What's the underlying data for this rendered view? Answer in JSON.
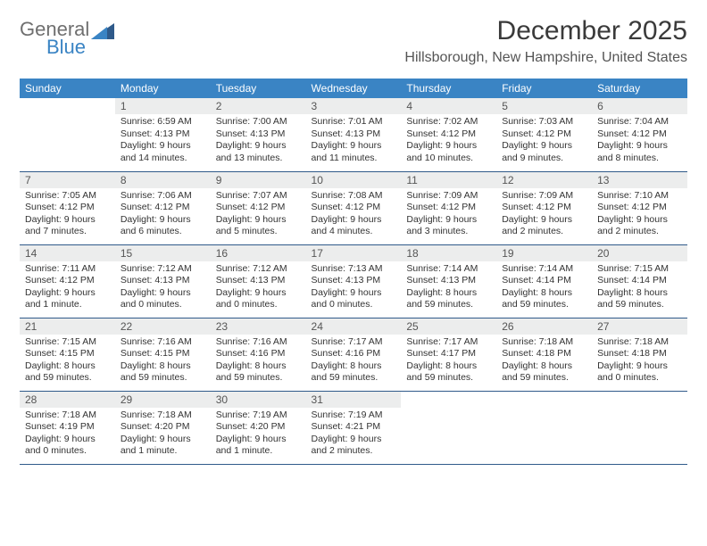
{
  "brand": {
    "general": "General",
    "blue": "Blue"
  },
  "title": "December 2025",
  "location": "Hillsborough, New Hampshire, United States",
  "colors": {
    "header_bg": "#3a84c4",
    "header_fg": "#ffffff",
    "daynum_bg": "#eceded",
    "rule": "#2f5a8a",
    "logo_gray": "#6f6f6f",
    "logo_blue": "#3a84c4"
  },
  "columns": [
    "Sunday",
    "Monday",
    "Tuesday",
    "Wednesday",
    "Thursday",
    "Friday",
    "Saturday"
  ],
  "weeks": [
    [
      {
        "n": "",
        "sr": "",
        "ss": "",
        "dl": ""
      },
      {
        "n": "1",
        "sr": "Sunrise: 6:59 AM",
        "ss": "Sunset: 4:13 PM",
        "dl": "Daylight: 9 hours and 14 minutes."
      },
      {
        "n": "2",
        "sr": "Sunrise: 7:00 AM",
        "ss": "Sunset: 4:13 PM",
        "dl": "Daylight: 9 hours and 13 minutes."
      },
      {
        "n": "3",
        "sr": "Sunrise: 7:01 AM",
        "ss": "Sunset: 4:13 PM",
        "dl": "Daylight: 9 hours and 11 minutes."
      },
      {
        "n": "4",
        "sr": "Sunrise: 7:02 AM",
        "ss": "Sunset: 4:12 PM",
        "dl": "Daylight: 9 hours and 10 minutes."
      },
      {
        "n": "5",
        "sr": "Sunrise: 7:03 AM",
        "ss": "Sunset: 4:12 PM",
        "dl": "Daylight: 9 hours and 9 minutes."
      },
      {
        "n": "6",
        "sr": "Sunrise: 7:04 AM",
        "ss": "Sunset: 4:12 PM",
        "dl": "Daylight: 9 hours and 8 minutes."
      }
    ],
    [
      {
        "n": "7",
        "sr": "Sunrise: 7:05 AM",
        "ss": "Sunset: 4:12 PM",
        "dl": "Daylight: 9 hours and 7 minutes."
      },
      {
        "n": "8",
        "sr": "Sunrise: 7:06 AM",
        "ss": "Sunset: 4:12 PM",
        "dl": "Daylight: 9 hours and 6 minutes."
      },
      {
        "n": "9",
        "sr": "Sunrise: 7:07 AM",
        "ss": "Sunset: 4:12 PM",
        "dl": "Daylight: 9 hours and 5 minutes."
      },
      {
        "n": "10",
        "sr": "Sunrise: 7:08 AM",
        "ss": "Sunset: 4:12 PM",
        "dl": "Daylight: 9 hours and 4 minutes."
      },
      {
        "n": "11",
        "sr": "Sunrise: 7:09 AM",
        "ss": "Sunset: 4:12 PM",
        "dl": "Daylight: 9 hours and 3 minutes."
      },
      {
        "n": "12",
        "sr": "Sunrise: 7:09 AM",
        "ss": "Sunset: 4:12 PM",
        "dl": "Daylight: 9 hours and 2 minutes."
      },
      {
        "n": "13",
        "sr": "Sunrise: 7:10 AM",
        "ss": "Sunset: 4:12 PM",
        "dl": "Daylight: 9 hours and 2 minutes."
      }
    ],
    [
      {
        "n": "14",
        "sr": "Sunrise: 7:11 AM",
        "ss": "Sunset: 4:12 PM",
        "dl": "Daylight: 9 hours and 1 minute."
      },
      {
        "n": "15",
        "sr": "Sunrise: 7:12 AM",
        "ss": "Sunset: 4:13 PM",
        "dl": "Daylight: 9 hours and 0 minutes."
      },
      {
        "n": "16",
        "sr": "Sunrise: 7:12 AM",
        "ss": "Sunset: 4:13 PM",
        "dl": "Daylight: 9 hours and 0 minutes."
      },
      {
        "n": "17",
        "sr": "Sunrise: 7:13 AM",
        "ss": "Sunset: 4:13 PM",
        "dl": "Daylight: 9 hours and 0 minutes."
      },
      {
        "n": "18",
        "sr": "Sunrise: 7:14 AM",
        "ss": "Sunset: 4:13 PM",
        "dl": "Daylight: 8 hours and 59 minutes."
      },
      {
        "n": "19",
        "sr": "Sunrise: 7:14 AM",
        "ss": "Sunset: 4:14 PM",
        "dl": "Daylight: 8 hours and 59 minutes."
      },
      {
        "n": "20",
        "sr": "Sunrise: 7:15 AM",
        "ss": "Sunset: 4:14 PM",
        "dl": "Daylight: 8 hours and 59 minutes."
      }
    ],
    [
      {
        "n": "21",
        "sr": "Sunrise: 7:15 AM",
        "ss": "Sunset: 4:15 PM",
        "dl": "Daylight: 8 hours and 59 minutes."
      },
      {
        "n": "22",
        "sr": "Sunrise: 7:16 AM",
        "ss": "Sunset: 4:15 PM",
        "dl": "Daylight: 8 hours and 59 minutes."
      },
      {
        "n": "23",
        "sr": "Sunrise: 7:16 AM",
        "ss": "Sunset: 4:16 PM",
        "dl": "Daylight: 8 hours and 59 minutes."
      },
      {
        "n": "24",
        "sr": "Sunrise: 7:17 AM",
        "ss": "Sunset: 4:16 PM",
        "dl": "Daylight: 8 hours and 59 minutes."
      },
      {
        "n": "25",
        "sr": "Sunrise: 7:17 AM",
        "ss": "Sunset: 4:17 PM",
        "dl": "Daylight: 8 hours and 59 minutes."
      },
      {
        "n": "26",
        "sr": "Sunrise: 7:18 AM",
        "ss": "Sunset: 4:18 PM",
        "dl": "Daylight: 8 hours and 59 minutes."
      },
      {
        "n": "27",
        "sr": "Sunrise: 7:18 AM",
        "ss": "Sunset: 4:18 PM",
        "dl": "Daylight: 9 hours and 0 minutes."
      }
    ],
    [
      {
        "n": "28",
        "sr": "Sunrise: 7:18 AM",
        "ss": "Sunset: 4:19 PM",
        "dl": "Daylight: 9 hours and 0 minutes."
      },
      {
        "n": "29",
        "sr": "Sunrise: 7:18 AM",
        "ss": "Sunset: 4:20 PM",
        "dl": "Daylight: 9 hours and 1 minute."
      },
      {
        "n": "30",
        "sr": "Sunrise: 7:19 AM",
        "ss": "Sunset: 4:20 PM",
        "dl": "Daylight: 9 hours and 1 minute."
      },
      {
        "n": "31",
        "sr": "Sunrise: 7:19 AM",
        "ss": "Sunset: 4:21 PM",
        "dl": "Daylight: 9 hours and 2 minutes."
      },
      {
        "n": "",
        "sr": "",
        "ss": "",
        "dl": ""
      },
      {
        "n": "",
        "sr": "",
        "ss": "",
        "dl": ""
      },
      {
        "n": "",
        "sr": "",
        "ss": "",
        "dl": ""
      }
    ]
  ]
}
